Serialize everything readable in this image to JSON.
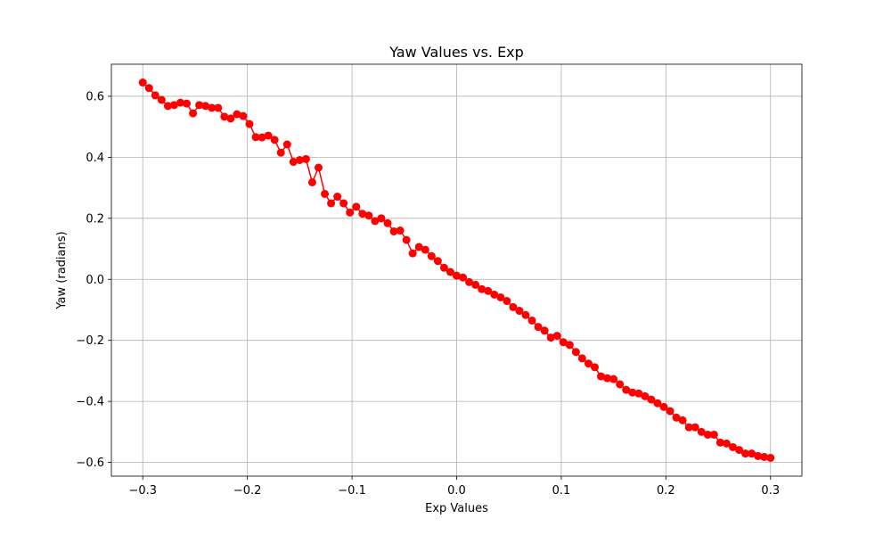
{
  "chart_data": {
    "type": "line",
    "title": "Yaw Values vs. Exp",
    "xlabel": "Exp Values",
    "ylabel": "Yaw (radians)",
    "xlim": [
      -0.33,
      0.33
    ],
    "ylim": [
      -0.645,
      0.705
    ],
    "xticks": [
      -0.3,
      -0.2,
      -0.1,
      0.0,
      0.1,
      0.2,
      0.3
    ],
    "xtick_labels": [
      "−0.3",
      "−0.2",
      "−0.1",
      "0.0",
      "0.1",
      "0.2",
      "0.3"
    ],
    "yticks": [
      -0.6,
      -0.4,
      -0.2,
      0.0,
      0.2,
      0.4,
      0.6
    ],
    "ytick_labels": [
      "−0.6",
      "−0.4",
      "−0.2",
      "0.0",
      "0.2",
      "0.4",
      "0.6"
    ],
    "grid": true,
    "series": [
      {
        "color": "#ff0000",
        "marker": "circle",
        "x_start": -0.3,
        "x_end": 0.3,
        "values": [
          0.645,
          0.627,
          0.603,
          0.588,
          0.568,
          0.571,
          0.579,
          0.576,
          0.544,
          0.571,
          0.568,
          0.562,
          0.562,
          0.533,
          0.527,
          0.541,
          0.535,
          0.509,
          0.466,
          0.465,
          0.471,
          0.457,
          0.415,
          0.442,
          0.385,
          0.391,
          0.394,
          0.318,
          0.366,
          0.28,
          0.249,
          0.271,
          0.249,
          0.219,
          0.238,
          0.215,
          0.209,
          0.191,
          0.2,
          0.184,
          0.157,
          0.16,
          0.129,
          0.085,
          0.106,
          0.097,
          0.076,
          0.06,
          0.038,
          0.024,
          0.012,
          0.006,
          -0.009,
          -0.018,
          -0.032,
          -0.038,
          -0.05,
          -0.059,
          -0.071,
          -0.091,
          -0.103,
          -0.117,
          -0.135,
          -0.156,
          -0.168,
          -0.191,
          -0.185,
          -0.206,
          -0.215,
          -0.238,
          -0.259,
          -0.276,
          -0.288,
          -0.318,
          -0.324,
          -0.327,
          -0.344,
          -0.362,
          -0.371,
          -0.374,
          -0.383,
          -0.394,
          -0.406,
          -0.418,
          -0.432,
          -0.453,
          -0.462,
          -0.485,
          -0.485,
          -0.5,
          -0.509,
          -0.509,
          -0.535,
          -0.538,
          -0.55,
          -0.559,
          -0.571,
          -0.571,
          -0.579,
          -0.582,
          -0.585
        ]
      }
    ]
  }
}
